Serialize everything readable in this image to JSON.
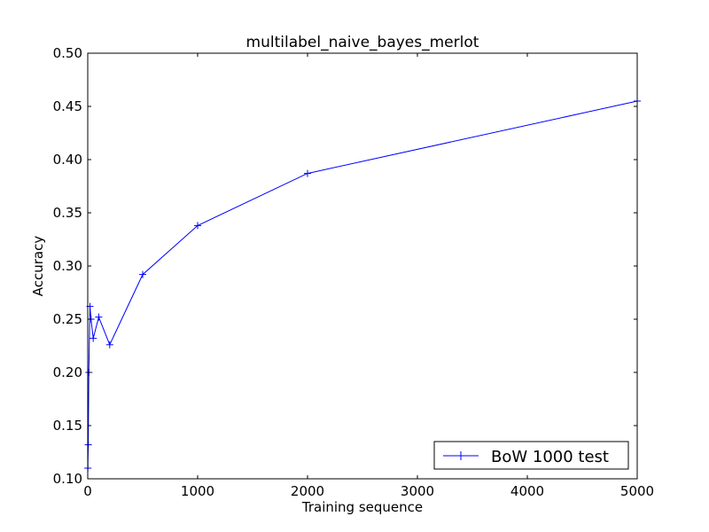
{
  "chart_data": {
    "type": "line",
    "title": "multilabel_naive_bayes_merlot",
    "xlabel": "Training sequence",
    "ylabel": "Accuracy",
    "xlim": [
      0,
      5000
    ],
    "ylim": [
      0.1,
      0.5
    ],
    "xticks": [
      0,
      1000,
      2000,
      3000,
      4000,
      5000
    ],
    "xtick_labels": [
      "0",
      "1000",
      "2000",
      "3000",
      "4000",
      "5000"
    ],
    "yticks": [
      0.1,
      0.15,
      0.2,
      0.25,
      0.3,
      0.35,
      0.4,
      0.45,
      0.5
    ],
    "ytick_labels": [
      "0.10",
      "0.15",
      "0.20",
      "0.25",
      "0.30",
      "0.35",
      "0.40",
      "0.45",
      "0.50"
    ],
    "grid": false,
    "legend_position": "lower-right",
    "series": [
      {
        "name": "BoW 1000 test",
        "color": "#0000ff",
        "marker": "+",
        "x": [
          1,
          5,
          10,
          20,
          30,
          50,
          100,
          200,
          500,
          1000,
          2000,
          5000
        ],
        "y": [
          0.11,
          0.132,
          0.2,
          0.262,
          0.25,
          0.232,
          0.252,
          0.226,
          0.292,
          0.338,
          0.387,
          0.455
        ]
      }
    ]
  }
}
